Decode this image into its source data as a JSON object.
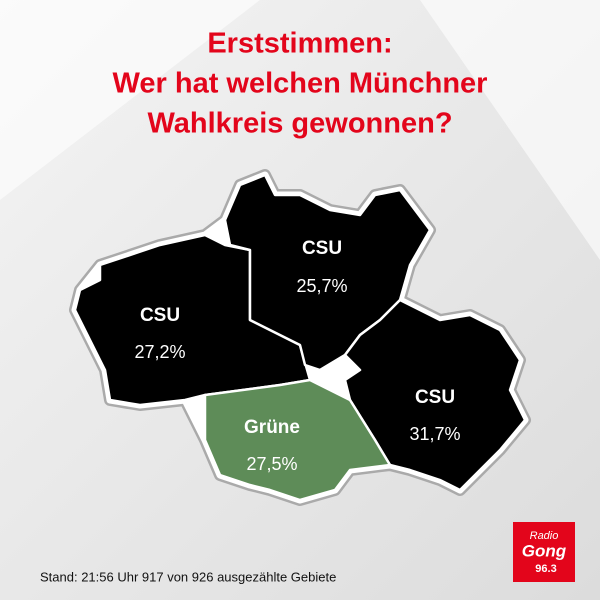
{
  "header": {
    "title": [
      "Erststimmen:",
      "Wer hat welchen Münchner",
      "Wahlkreis gewonnen?"
    ]
  },
  "districts": [
    {
      "party": "CSU",
      "result": "27,2%"
    },
    {
      "party": "CSU",
      "result": "25,7%"
    },
    {
      "party": "CSU",
      "result": "31,7%"
    },
    {
      "party": "Grüne",
      "result": "27,5%"
    }
  ],
  "footer": "Stand: 21:56 Uhr 917 von 926 ausgezählte Gebiete",
  "logo": [
    "Radio",
    "Gong",
    "96.3"
  ]
}
